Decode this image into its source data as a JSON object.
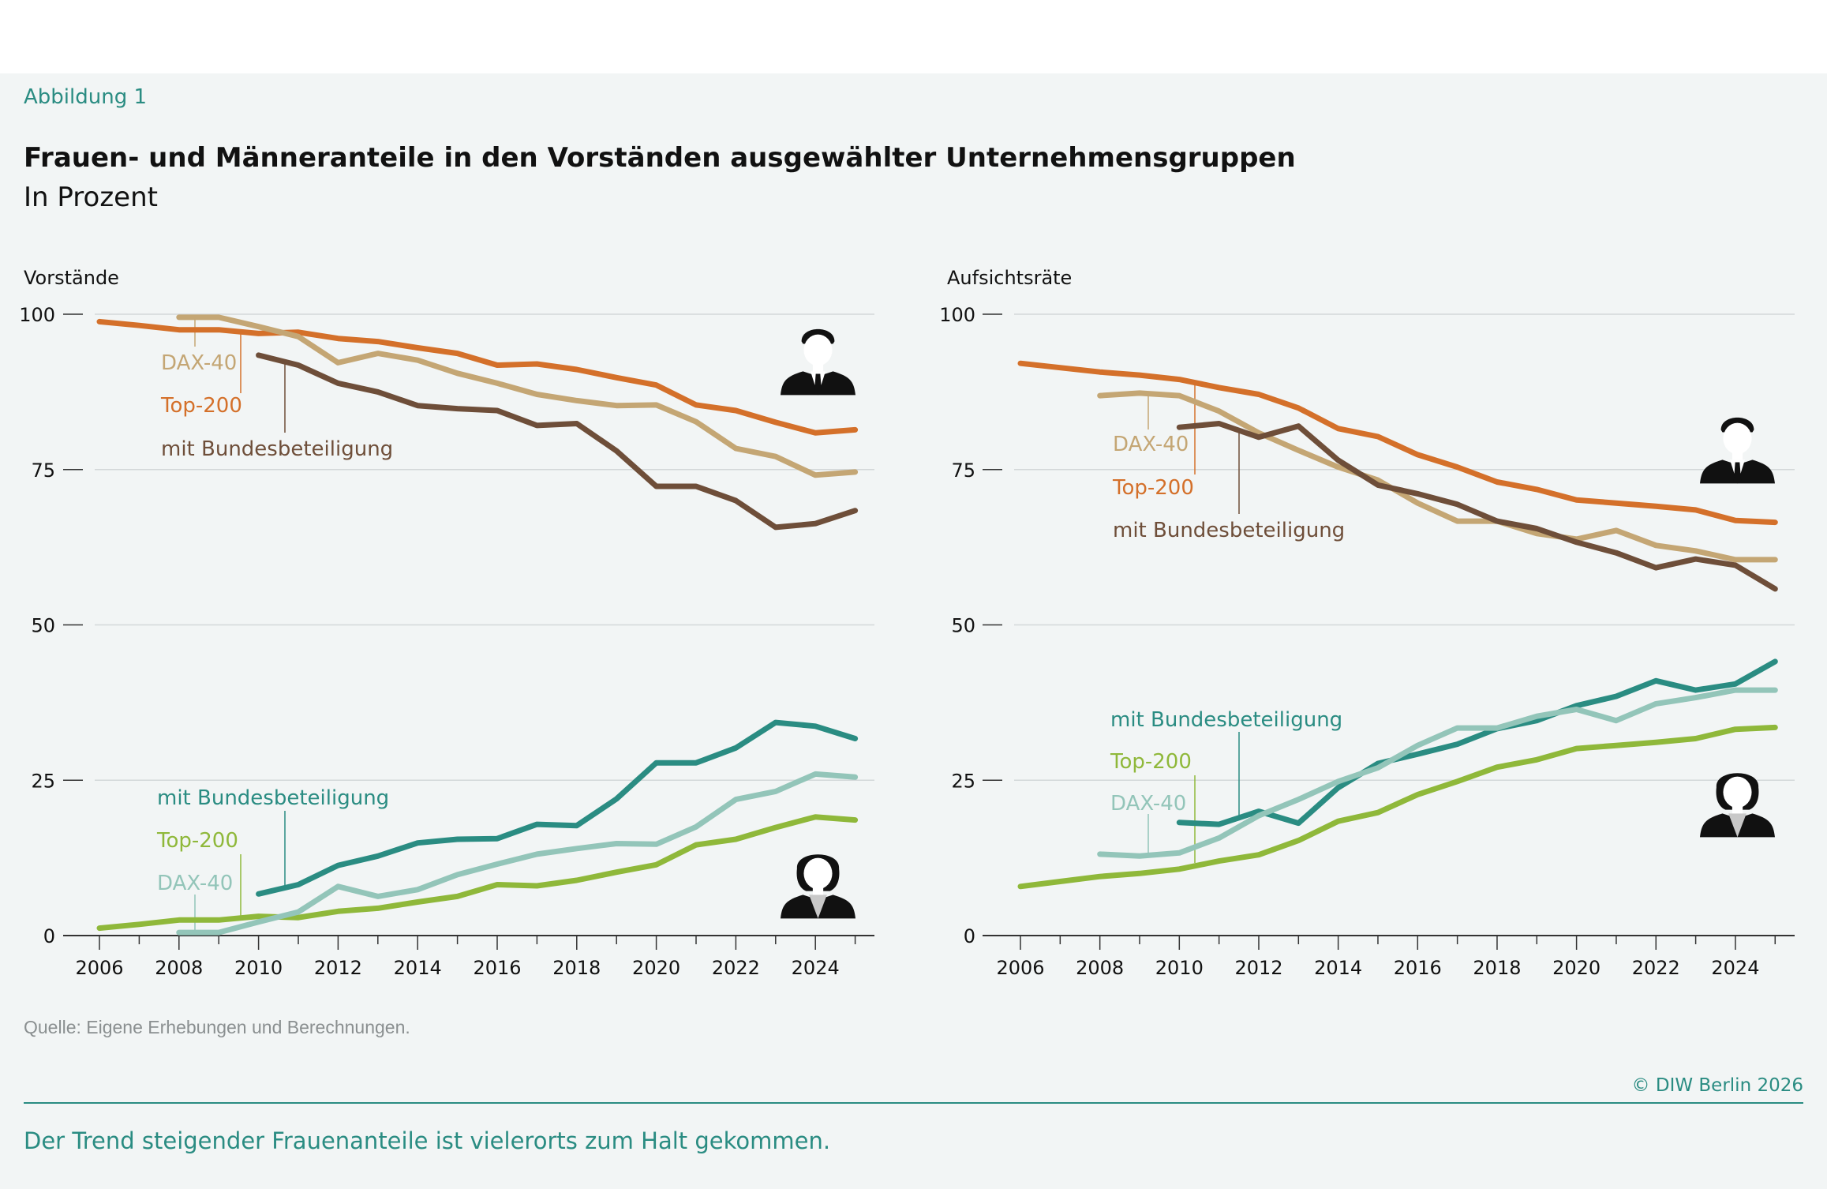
{
  "figure_label": "Abbildung 1",
  "title": "Frauen- und Männeranteile in den Vorständen ausgewählter Unternehmensgruppen",
  "subtitle": "In Prozent",
  "source": "Quelle: Eigene Erhebungen und Berechnungen.",
  "copyright": "© DIW Berlin 2026",
  "footer": "Der Trend steigender Frauenanteile ist vielerorts zum Halt gekommen.",
  "colors": {
    "men_top200": "#d4702a",
    "men_dax40": "#c4a674",
    "men_bund": "#6e4e39",
    "women_top200": "#8fb83a",
    "women_dax40": "#93c5b9",
    "women_bund": "#2a8c82",
    "accent": "#2a8c82",
    "background": "#f2f5f5"
  },
  "icons": [
    "man-silhouette-icon",
    "woman-silhouette-icon"
  ],
  "chart_data": [
    {
      "type": "line",
      "title": "Vorstände",
      "ylim": [
        0,
        100
      ],
      "yticks": [
        0,
        25,
        50,
        75,
        100
      ],
      "xticks": [
        2006,
        2008,
        2010,
        2012,
        2014,
        2016,
        2018,
        2020,
        2022,
        2024
      ],
      "grid": true,
      "series": [
        {
          "name": "Top-200",
          "group": "men",
          "color": "#d4702a",
          "x": [
            2006,
            2007,
            2008,
            2009,
            2010,
            2011,
            2012,
            2013,
            2014,
            2015,
            2016,
            2017,
            2018,
            2019,
            2020,
            2021,
            2022,
            2023,
            2024,
            2025
          ],
          "values": [
            98.8,
            98.2,
            97.5,
            97.5,
            96.9,
            97.1,
            96.1,
            95.6,
            94.6,
            93.7,
            91.8,
            92.0,
            91.1,
            89.8,
            88.6,
            85.4,
            84.5,
            82.6,
            80.9,
            81.4
          ]
        },
        {
          "name": "DAX-40",
          "group": "men",
          "color": "#c4a674",
          "x": [
            2008,
            2009,
            2010,
            2011,
            2012,
            2013,
            2014,
            2015,
            2016,
            2017,
            2018,
            2019,
            2020,
            2021,
            2022,
            2023,
            2024,
            2025
          ],
          "values": [
            99.5,
            99.5,
            98.0,
            96.4,
            92.2,
            93.7,
            92.6,
            90.5,
            88.9,
            87.1,
            86.1,
            85.3,
            85.4,
            82.7,
            78.4,
            77.1,
            74.1,
            74.6
          ]
        },
        {
          "name": "mit Bundesbeteiligung",
          "group": "men",
          "color": "#6e4e39",
          "x": [
            2010,
            2011,
            2012,
            2013,
            2014,
            2015,
            2016,
            2017,
            2018,
            2019,
            2020,
            2021,
            2022,
            2023,
            2024,
            2025
          ],
          "values": [
            93.4,
            91.8,
            88.9,
            87.5,
            85.3,
            84.8,
            84.5,
            82.1,
            82.4,
            78.0,
            72.3,
            72.3,
            70.0,
            65.7,
            66.3,
            68.4
          ]
        },
        {
          "name": "mit Bundesbeteiligung",
          "group": "women",
          "color": "#2a8c82",
          "x": [
            2010,
            2011,
            2012,
            2013,
            2014,
            2015,
            2016,
            2017,
            2018,
            2019,
            2020,
            2021,
            2022,
            2023,
            2024,
            2025
          ],
          "values": [
            6.7,
            8.2,
            11.3,
            12.8,
            14.9,
            15.5,
            15.6,
            17.9,
            17.7,
            22.0,
            27.8,
            27.8,
            30.2,
            34.3,
            33.7,
            31.7
          ]
        },
        {
          "name": "Top-200",
          "group": "women",
          "color": "#8fb83a",
          "x": [
            2006,
            2007,
            2008,
            2009,
            2010,
            2011,
            2012,
            2013,
            2014,
            2015,
            2016,
            2017,
            2018,
            2019,
            2020,
            2021,
            2022,
            2023,
            2024,
            2025
          ],
          "values": [
            1.2,
            1.8,
            2.5,
            2.5,
            3.1,
            2.9,
            3.9,
            4.4,
            5.4,
            6.3,
            8.2,
            8.0,
            8.9,
            10.2,
            11.4,
            14.6,
            15.5,
            17.4,
            19.1,
            18.6
          ]
        },
        {
          "name": "DAX-40",
          "group": "women",
          "color": "#93c5b9",
          "x": [
            2008,
            2009,
            2010,
            2011,
            2012,
            2013,
            2014,
            2015,
            2016,
            2017,
            2018,
            2019,
            2020,
            2021,
            2022,
            2023,
            2024,
            2025
          ],
          "values": [
            0.5,
            0.5,
            2.2,
            3.8,
            7.9,
            6.3,
            7.4,
            9.8,
            11.5,
            13.1,
            14.0,
            14.8,
            14.7,
            17.5,
            21.9,
            23.2,
            26.0,
            25.5
          ]
        }
      ]
    },
    {
      "type": "line",
      "title": "Aufsichtsräte",
      "ylim": [
        0,
        100
      ],
      "yticks": [
        0,
        25,
        50,
        75,
        100
      ],
      "xticks": [
        2006,
        2008,
        2010,
        2012,
        2014,
        2016,
        2018,
        2020,
        2022,
        2024
      ],
      "grid": true,
      "series": [
        {
          "name": "Top-200",
          "group": "men",
          "color": "#d4702a",
          "x": [
            2006,
            2007,
            2008,
            2009,
            2010,
            2011,
            2012,
            2013,
            2014,
            2015,
            2016,
            2017,
            2018,
            2019,
            2020,
            2021,
            2022,
            2023,
            2024,
            2025
          ],
          "values": [
            92.1,
            91.4,
            90.7,
            90.2,
            89.5,
            88.2,
            87.1,
            84.9,
            81.6,
            80.3,
            77.4,
            75.4,
            73.0,
            71.8,
            70.1,
            69.6,
            69.1,
            68.5,
            66.8,
            66.5
          ]
        },
        {
          "name": "DAX-40",
          "group": "men",
          "color": "#c4a674",
          "x": [
            2008,
            2009,
            2010,
            2011,
            2012,
            2013,
            2014,
            2015,
            2016,
            2017,
            2018,
            2019,
            2020,
            2021,
            2022,
            2023,
            2024,
            2025
          ],
          "values": [
            86.9,
            87.3,
            86.9,
            84.4,
            80.9,
            78.1,
            75.4,
            73.3,
            69.6,
            66.7,
            66.7,
            64.7,
            63.8,
            65.2,
            62.8,
            61.9,
            60.5,
            60.5
          ]
        },
        {
          "name": "mit Bundesbeteiligung",
          "group": "men",
          "color": "#6e4e39",
          "x": [
            2010,
            2011,
            2012,
            2013,
            2014,
            2015,
            2016,
            2017,
            2018,
            2019,
            2020,
            2021,
            2022,
            2023,
            2024,
            2025
          ],
          "values": [
            81.8,
            82.4,
            80.2,
            82.0,
            76.5,
            72.5,
            71.1,
            69.4,
            66.7,
            65.5,
            63.3,
            61.6,
            59.2,
            60.6,
            59.6,
            55.8
          ]
        },
        {
          "name": "mit Bundesbeteiligung",
          "group": "women",
          "color": "#2a8c82",
          "x": [
            2010,
            2011,
            2012,
            2013,
            2014,
            2015,
            2016,
            2017,
            2018,
            2019,
            2020,
            2021,
            2022,
            2023,
            2024,
            2025
          ],
          "values": [
            18.2,
            17.9,
            20.0,
            18.1,
            23.8,
            27.7,
            29.2,
            30.8,
            33.3,
            34.6,
            37.0,
            38.5,
            41.0,
            39.5,
            40.5,
            44.1
          ]
        },
        {
          "name": "Top-200",
          "group": "women",
          "color": "#8fb83a",
          "x": [
            2006,
            2007,
            2008,
            2009,
            2010,
            2011,
            2012,
            2013,
            2014,
            2015,
            2016,
            2017,
            2018,
            2019,
            2020,
            2021,
            2022,
            2023,
            2024,
            2025
          ],
          "values": [
            7.9,
            8.7,
            9.5,
            10.0,
            10.7,
            12.0,
            13.0,
            15.3,
            18.4,
            19.8,
            22.7,
            24.8,
            27.1,
            28.3,
            30.1,
            30.6,
            31.1,
            31.7,
            33.2,
            33.5
          ]
        },
        {
          "name": "DAX-40",
          "group": "women",
          "color": "#93c5b9",
          "x": [
            2008,
            2009,
            2010,
            2011,
            2012,
            2013,
            2014,
            2015,
            2016,
            2017,
            2018,
            2019,
            2020,
            2021,
            2022,
            2023,
            2024,
            2025
          ],
          "values": [
            13.1,
            12.8,
            13.3,
            15.7,
            19.3,
            21.9,
            24.8,
            27.0,
            30.6,
            33.4,
            33.4,
            35.3,
            36.4,
            34.6,
            37.3,
            38.3,
            39.5,
            39.5
          ]
        }
      ]
    }
  ]
}
